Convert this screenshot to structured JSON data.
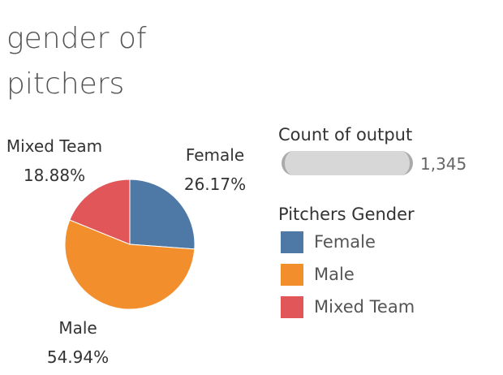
{
  "title_lines": [
    "gender of",
    "pitchers"
  ],
  "chart_data": {
    "type": "pie",
    "title": "gender of pitchers",
    "categories": [
      "Female",
      "Male",
      "Mixed Team"
    ],
    "values": [
      26.17,
      54.94,
      18.88
    ],
    "value_labels": [
      "26.17%",
      "54.94%",
      "18.88%"
    ],
    "colors": [
      "#4e79a7",
      "#f28e2b",
      "#e15759"
    ]
  },
  "size_legend": {
    "title": "Count of output",
    "value": "1,345"
  },
  "color_legend": {
    "title": "Pitchers Gender",
    "items": [
      {
        "label": "Female",
        "color": "#4e79a7"
      },
      {
        "label": "Male",
        "color": "#f28e2b"
      },
      {
        "label": "Mixed Team",
        "color": "#e15759"
      }
    ]
  }
}
